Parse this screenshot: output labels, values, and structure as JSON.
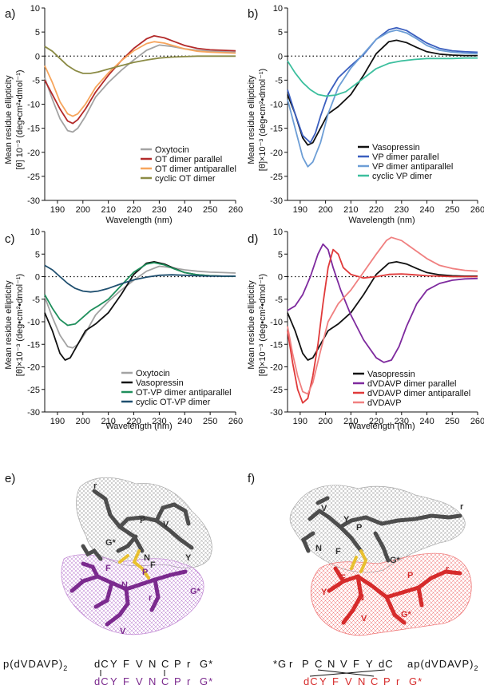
{
  "panels": {
    "a": "a)",
    "b": "b)",
    "c": "c)",
    "d": "d)",
    "e": "e)",
    "f": "f)"
  },
  "ylabel_line1": "Mean residue ellipticity",
  "ylabel_line2_a": "[θ]  10⁻³ (deg•cm²•dmol⁻¹)",
  "ylabel_line2": "[θ]×10⁻³ (deg•cm²•dmol⁻¹)",
  "xlabel": "Wavelength (nm)",
  "chart_data": [
    {
      "panel": "a",
      "type": "line",
      "xlabel": "Wavelength (nm)",
      "ylabel": "Mean residue ellipticity [θ] 10⁻³ (deg•cm²•dmol⁻¹)",
      "xlim": [
        185,
        260
      ],
      "ylim": [
        -30,
        10
      ],
      "xticks": [
        190,
        200,
        210,
        220,
        230,
        240,
        250,
        260
      ],
      "yticks": [
        -30,
        -25,
        -20,
        -15,
        -10,
        -5,
        0,
        5,
        10
      ],
      "legend": "bottom-right",
      "series": [
        {
          "name": "Oxytocin",
          "color": "#a3a3a3",
          "x": [
            185,
            188,
            191,
            194,
            196,
            198,
            201,
            205,
            210,
            215,
            220,
            225,
            230,
            235,
            240,
            245,
            250,
            255,
            260
          ],
          "y": [
            -4.5,
            -9,
            -13,
            -15.5,
            -15.8,
            -15,
            -12.5,
            -8.5,
            -5.5,
            -3,
            -0.8,
            1.2,
            2.3,
            2,
            1.5,
            1.2,
            1,
            0.9,
            0.8
          ]
        },
        {
          "name": "OT dimer parallel",
          "color": "#b32a2a",
          "x": [
            185,
            188,
            191,
            194,
            196,
            198,
            201,
            205,
            210,
            215,
            220,
            225,
            228,
            232,
            236,
            240,
            245,
            250,
            255,
            260
          ],
          "y": [
            -5,
            -8,
            -11,
            -13.5,
            -14,
            -13.2,
            -11,
            -7.5,
            -4,
            -1,
            1.6,
            3.6,
            4.2,
            3.8,
            3,
            2.2,
            1.6,
            1.3,
            1.2,
            1.1
          ]
        },
        {
          "name": "OT dimer antiparallel",
          "color": "#f7a55c",
          "x": [
            185,
            188,
            191,
            194,
            196,
            198,
            201,
            205,
            210,
            215,
            220,
            225,
            228,
            232,
            236,
            240,
            245,
            250,
            255,
            260
          ],
          "y": [
            -2,
            -5.5,
            -9.5,
            -12,
            -12.5,
            -12,
            -10,
            -6.5,
            -3.5,
            -1,
            1.1,
            2.6,
            3,
            2.7,
            2.1,
            1.5,
            1,
            0.8,
            0.7,
            0.6
          ]
        },
        {
          "name": "cyclic OT dimer",
          "color": "#8b8b45",
          "x": [
            185,
            188,
            191,
            194,
            197,
            200,
            203,
            206,
            210,
            215,
            220,
            225,
            230,
            235,
            240,
            245,
            250,
            255,
            260
          ],
          "y": [
            2,
            1,
            -0.5,
            -2,
            -3,
            -3.6,
            -3.6,
            -3.3,
            -2.7,
            -2,
            -1.3,
            -0.8,
            -0.4,
            -0.2,
            -0.1,
            0,
            0,
            0,
            0
          ]
        }
      ]
    },
    {
      "panel": "b",
      "type": "line",
      "xlabel": "Wavelength (nm)",
      "ylabel": "Mean residue ellipticity [θ]×10⁻³ (deg•cm²•dmol⁻¹)",
      "xlim": [
        185,
        260
      ],
      "ylim": [
        -30,
        10
      ],
      "xticks": [
        190,
        200,
        210,
        220,
        230,
        240,
        250,
        260
      ],
      "yticks": [
        -30,
        -25,
        -20,
        -15,
        -10,
        -5,
        0,
        5,
        10
      ],
      "legend": "bottom-right",
      "series": [
        {
          "name": "Vasopressin",
          "color": "#111111",
          "x": [
            185,
            188,
            191,
            193,
            195,
            198,
            201,
            205,
            210,
            215,
            220,
            225,
            228,
            232,
            236,
            240,
            245,
            250,
            255,
            260
          ],
          "y": [
            -8,
            -12,
            -17,
            -18.5,
            -18,
            -15,
            -12,
            -10.5,
            -8,
            -4,
            0.5,
            3,
            3.3,
            2.8,
            1.8,
            0.9,
            0.4,
            0.2,
            0.1,
            0.1
          ]
        },
        {
          "name": "VP dimer parallel",
          "color": "#3b5fbf",
          "x": [
            185,
            188,
            191,
            194,
            196,
            198,
            201,
            205,
            210,
            215,
            220,
            225,
            228,
            232,
            236,
            240,
            245,
            250,
            255,
            260
          ],
          "y": [
            -7,
            -12,
            -16.5,
            -18,
            -16,
            -12.5,
            -8,
            -4.5,
            -2,
            0.3,
            3.5,
            5.5,
            5.9,
            5.3,
            4,
            2.7,
            1.6,
            1.1,
            0.9,
            0.8
          ]
        },
        {
          "name": "VP dimer antiparallel",
          "color": "#6d9ed6",
          "x": [
            185,
            188,
            191,
            193,
            195,
            198,
            201,
            205,
            210,
            215,
            220,
            225,
            228,
            232,
            236,
            240,
            245,
            250,
            255,
            260
          ],
          "y": [
            -9,
            -15,
            -21,
            -23,
            -22,
            -18,
            -12,
            -6.5,
            -2.5,
            0.5,
            3.5,
            5,
            5.4,
            4.8,
            3.6,
            2.2,
            1.2,
            0.8,
            0.6,
            0.5
          ]
        },
        {
          "name": "cyclic VP dimer",
          "color": "#3cbf9e",
          "x": [
            185,
            188,
            191,
            194,
            197,
            200,
            204,
            208,
            212,
            216,
            220,
            225,
            230,
            235,
            240,
            245,
            250,
            255,
            260
          ],
          "y": [
            -1,
            -3.5,
            -5.5,
            -7,
            -8,
            -8.3,
            -8.1,
            -7.4,
            -5.8,
            -4.2,
            -2.6,
            -1.5,
            -1,
            -0.7,
            -0.5,
            -0.5,
            -0.5,
            -0.4,
            -0.4
          ]
        }
      ]
    },
    {
      "panel": "c",
      "type": "line",
      "xlabel": "Wavelength (nm)",
      "ylabel": "Mean residue ellipticity [θ]×10⁻³ (deg•cm²•dmol⁻¹)",
      "xlim": [
        185,
        260
      ],
      "ylim": [
        -30,
        10
      ],
      "xticks": [
        190,
        200,
        210,
        220,
        230,
        240,
        250,
        260
      ],
      "yticks": [
        -30,
        -25,
        -20,
        -15,
        -10,
        -5,
        0,
        5,
        10
      ],
      "legend": "bottom-right",
      "series": [
        {
          "name": "Oxytocin",
          "color": "#a3a3a3",
          "x": [
            185,
            188,
            191,
            194,
            196,
            198,
            201,
            205,
            210,
            215,
            220,
            225,
            230,
            235,
            240,
            245,
            250,
            255,
            260
          ],
          "y": [
            -4.5,
            -9,
            -13,
            -15.5,
            -15.8,
            -15,
            -12.5,
            -8.5,
            -5.5,
            -3,
            -0.8,
            1.2,
            2.3,
            2,
            1.5,
            1.2,
            1,
            0.9,
            0.8
          ]
        },
        {
          "name": "Vasopressin",
          "color": "#111111",
          "x": [
            185,
            188,
            191,
            193,
            195,
            198,
            201,
            205,
            210,
            215,
            220,
            225,
            228,
            232,
            236,
            240,
            245,
            250,
            255,
            260
          ],
          "y": [
            -8,
            -12,
            -17,
            -18.5,
            -18,
            -15,
            -12,
            -10.5,
            -8,
            -4,
            0.5,
            3,
            3.3,
            2.8,
            1.8,
            0.9,
            0.4,
            0.2,
            0.1,
            0.1
          ]
        },
        {
          "name": "OT-VP dimer antiparallel",
          "color": "#1f8f5c",
          "x": [
            185,
            188,
            191,
            194,
            197,
            200,
            203,
            206,
            210,
            215,
            220,
            225,
            228,
            232,
            236,
            240,
            245,
            250,
            255,
            260
          ],
          "y": [
            -4,
            -7,
            -9.5,
            -10.8,
            -10.5,
            -9,
            -7.5,
            -6.5,
            -5,
            -2,
            1,
            2.8,
            3.1,
            2.6,
            1.7,
            0.9,
            0.4,
            0.2,
            0.1,
            0.1
          ]
        },
        {
          "name": "cyclic OT-VP dimer",
          "color": "#1f4f6f",
          "x": [
            185,
            188,
            191,
            194,
            197,
            200,
            203,
            206,
            210,
            215,
            220,
            225,
            230,
            235,
            240,
            245,
            250,
            255,
            260
          ],
          "y": [
            2.5,
            1.5,
            0,
            -1.5,
            -2.6,
            -3.2,
            -3.4,
            -3.2,
            -2.6,
            -1.6,
            -0.7,
            -0.1,
            0.3,
            0.4,
            0.3,
            0.2,
            0.1,
            0.1,
            0.1
          ]
        }
      ]
    },
    {
      "panel": "d",
      "type": "line",
      "xlabel": "Wavelength (nm)",
      "ylabel": "Mean residue ellipticity [θ]×10⁻³ (deg•cm²•dmol⁻¹)",
      "xlim": [
        185,
        260
      ],
      "ylim": [
        -30,
        10
      ],
      "xticks": [
        190,
        200,
        210,
        220,
        230,
        240,
        250,
        260
      ],
      "yticks": [
        -30,
        -25,
        -20,
        -15,
        -10,
        -5,
        0,
        5,
        10
      ],
      "legend": "bottom-right",
      "series": [
        {
          "name": "Vasopressin",
          "color": "#111111",
          "x": [
            185,
            188,
            191,
            193,
            195,
            198,
            201,
            205,
            210,
            215,
            220,
            225,
            228,
            232,
            236,
            240,
            245,
            250,
            255,
            260
          ],
          "y": [
            -8,
            -12,
            -17,
            -18.5,
            -18,
            -15,
            -12,
            -10.5,
            -8,
            -4,
            0.5,
            3,
            3.3,
            2.8,
            1.8,
            0.9,
            0.4,
            0.2,
            0.1,
            0.1
          ]
        },
        {
          "name": "dVDAVP dimer parallel",
          "color": "#7e2a9e",
          "x": [
            185,
            188,
            191,
            194,
            197,
            199,
            201,
            203,
            206,
            210,
            215,
            220,
            223,
            226,
            229,
            232,
            236,
            240,
            245,
            250,
            255,
            260
          ],
          "y": [
            -7.5,
            -6.5,
            -4,
            0,
            5,
            7.2,
            6,
            2,
            -3,
            -8.5,
            -14,
            -18,
            -19,
            -18.5,
            -15.5,
            -11,
            -6,
            -3,
            -1.5,
            -0.8,
            -0.5,
            -0.4
          ]
        },
        {
          "name": "dVDAVP dimer antiparallel",
          "color": "#e03a3a",
          "x": [
            185,
            187,
            189,
            191,
            193,
            195,
            197,
            199,
            201,
            203,
            205,
            207,
            210,
            215,
            220,
            225,
            230,
            235,
            240,
            245,
            250,
            255,
            260
          ],
          "y": [
            -12,
            -19,
            -25,
            -28,
            -27,
            -22,
            -15,
            -6,
            2,
            6,
            5,
            2,
            0.5,
            -0.3,
            0,
            0.5,
            0.6,
            0.4,
            0.2,
            0.1,
            0,
            0,
            0
          ]
        },
        {
          "name": "dVDAVP",
          "color": "#f08080",
          "x": [
            185,
            187,
            189,
            191,
            193,
            195,
            198,
            201,
            205,
            210,
            215,
            220,
            224,
            226,
            230,
            235,
            240,
            245,
            250,
            255,
            260
          ],
          "y": [
            -11,
            -17,
            -22,
            -25.5,
            -26,
            -23.5,
            -16.5,
            -10,
            -6,
            -3,
            1,
            5,
            8,
            8.7,
            8,
            6,
            4,
            2.5,
            1.8,
            1.4,
            1.2
          ]
        }
      ]
    }
  ],
  "structures": {
    "e": {
      "residues": [
        "r",
        "P",
        "V",
        "G*",
        "N",
        "Y",
        "F",
        "F",
        "Y",
        "N",
        "P",
        "G*",
        "r",
        "V"
      ],
      "name": "p(dVDAVP)",
      "subscript": "2",
      "seq_top": [
        "dC",
        "Y",
        "F",
        "V",
        "N",
        "C",
        "P",
        "r",
        "G*"
      ],
      "seq_bottom": [
        "dC",
        "Y",
        "F",
        "V",
        "N",
        "C",
        "P",
        "r",
        "G*"
      ],
      "mesh_top_color": "#999999",
      "mesh_bottom_color": "#9b59b6",
      "stick_top_color": "#4a4a4a",
      "stick_bottom_color": "#7b2a8e"
    },
    "f": {
      "residues": [
        "r",
        "V",
        "Y",
        "P",
        "N",
        "F",
        "G*",
        "F",
        "Y",
        "N",
        "P",
        "G*",
        "r",
        "V"
      ],
      "name": "ap(dVDAVP)",
      "subscript": "2",
      "seq_top": [
        "*G",
        "r",
        "P",
        "C",
        "N",
        "V",
        "F",
        "Y",
        "dC"
      ],
      "seq_bottom": [
        "dC",
        "Y",
        "F",
        "V",
        "N",
        "C",
        "P",
        "r",
        "G*"
      ],
      "mesh_top_color": "#999999",
      "mesh_bottom_color": "#e53935",
      "stick_top_color": "#4a4a4a",
      "stick_bottom_color": "#d62b2b"
    }
  }
}
